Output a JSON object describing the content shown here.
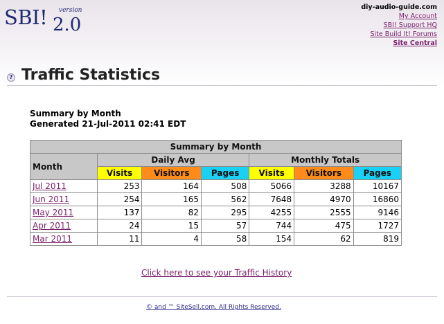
{
  "logo": {
    "brand": "SBI!",
    "version_word": "version",
    "version_number": "2.0"
  },
  "site_links": {
    "domain": "diy-audio-guide.com",
    "links": [
      "My Account",
      "SBI! Support HQ",
      "Site Build It! Forums",
      "Site Central"
    ]
  },
  "page": {
    "help_icon": "?",
    "title": "Traffic Statistics"
  },
  "summary": {
    "heading": "Summary by Month",
    "generated": "Generated 21-Jul-2011 02:41 EDT"
  },
  "table": {
    "caption": "Summary by Month",
    "month_header": "Month",
    "group_daily": "Daily Avg",
    "group_monthly": "Monthly Totals",
    "col_visits": "Visits",
    "col_visitors": "Visitors",
    "col_pages": "Pages",
    "header_colors": {
      "visits": "#ffff00",
      "visitors": "#ff8c1a",
      "pages": "#19d0f5"
    },
    "rows": [
      {
        "month": "Jul 2011",
        "d_visits": "253",
        "d_visitors": "164",
        "d_pages": "508",
        "m_visits": "5066",
        "m_visitors": "3288",
        "m_pages": "10167"
      },
      {
        "month": "Jun 2011",
        "d_visits": "254",
        "d_visitors": "165",
        "d_pages": "562",
        "m_visits": "7648",
        "m_visitors": "4970",
        "m_pages": "16860"
      },
      {
        "month": "May 2011",
        "d_visits": "137",
        "d_visitors": "82",
        "d_pages": "295",
        "m_visits": "4255",
        "m_visitors": "2555",
        "m_pages": "9146"
      },
      {
        "month": "Apr 2011",
        "d_visits": "24",
        "d_visitors": "15",
        "d_pages": "57",
        "m_visits": "744",
        "m_visitors": "475",
        "m_pages": "1727"
      },
      {
        "month": "Mar 2011",
        "d_visits": "11",
        "d_visitors": "4",
        "d_pages": "58",
        "m_visits": "154",
        "m_visitors": "62",
        "m_pages": "819"
      }
    ]
  },
  "history_link": "Click here to see your Traffic History",
  "footer": "© and ™ SiteSell.com.  All Rights Reserved."
}
